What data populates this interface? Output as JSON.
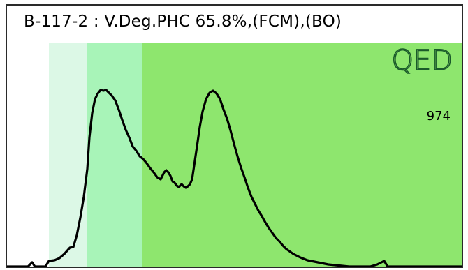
{
  "chart_data": {
    "type": "area",
    "title": "B-117-2 : V.Deg.PHC 65.8%,(FCM),(BO)",
    "logo": "QED",
    "peak_count_label": "974",
    "colors": {
      "region_1": "#dcf8e6",
      "region_2": "#a8f4b8",
      "region_3": "#8ee66e",
      "curve": "#000000"
    },
    "regions": [
      {
        "x0": 60,
        "x1": 115
      },
      {
        "x0": 115,
        "x1": 193
      },
      {
        "x0": 193,
        "x1": 651
      }
    ],
    "x": [
      0,
      30,
      36,
      40,
      44,
      48,
      55,
      60,
      68,
      75,
      82,
      90,
      95,
      100,
      105,
      110,
      115,
      118,
      122,
      126,
      130,
      134,
      138,
      142,
      145,
      150,
      155,
      160,
      165,
      170,
      175,
      180,
      185,
      190,
      195,
      200,
      205,
      210,
      215,
      220,
      225,
      228,
      231,
      234,
      237,
      240,
      243,
      246,
      250,
      253,
      256,
      259,
      262,
      265,
      268,
      272,
      276,
      280,
      285,
      290,
      295,
      300,
      305,
      310,
      315,
      320,
      325,
      330,
      335,
      340,
      345,
      350,
      355,
      360,
      365,
      370,
      375,
      380,
      385,
      390,
      395,
      400,
      410,
      420,
      430,
      440,
      450,
      460,
      470,
      480,
      490,
      500,
      510,
      520,
      530,
      540,
      545,
      550,
      560,
      580,
      600,
      620,
      651
    ],
    "y": [
      0,
      0,
      6,
      0,
      0,
      0,
      0,
      8,
      9,
      12,
      18,
      27,
      28,
      45,
      70,
      100,
      140,
      185,
      220,
      240,
      248,
      253,
      252,
      253,
      250,
      245,
      238,
      225,
      210,
      196,
      185,
      172,
      166,
      158,
      154,
      148,
      141,
      135,
      128,
      125,
      135,
      138,
      135,
      130,
      122,
      120,
      116,
      114,
      118,
      115,
      113,
      115,
      118,
      125,
      145,
      172,
      200,
      222,
      240,
      249,
      252,
      248,
      240,
      225,
      212,
      195,
      176,
      158,
      142,
      128,
      113,
      100,
      90,
      80,
      72,
      63,
      55,
      48,
      41,
      36,
      30,
      25,
      18,
      13,
      9,
      7,
      5,
      3,
      2,
      1,
      0,
      0,
      0,
      0,
      3,
      8,
      0,
      0,
      0,
      0,
      0,
      0,
      0
    ],
    "xlim": [
      0,
      651
    ],
    "ylim": [
      0,
      320
    ]
  }
}
